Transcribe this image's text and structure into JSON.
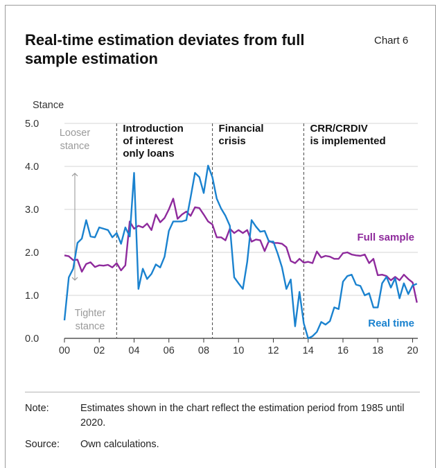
{
  "header": {
    "title": "Real-time estimation deviates from full sample estimation",
    "chart_number": "Chart 6"
  },
  "chart_data": {
    "type": "line",
    "ylabel": "Stance",
    "ylim": [
      0,
      5
    ],
    "xlim": [
      2000,
      2020.3
    ],
    "y_ticks": [
      "0.0",
      "1.0",
      "2.0",
      "3.0",
      "4.0",
      "5.0"
    ],
    "x_ticks": [
      "00",
      "02",
      "04",
      "06",
      "08",
      "10",
      "12",
      "14",
      "16",
      "18",
      "20"
    ],
    "grid": "horizontal",
    "annotations": {
      "looser": [
        "Looser",
        "stance"
      ],
      "tighter": [
        "Tighter",
        "stance"
      ],
      "events": [
        {
          "x": 2003.0,
          "lines": [
            "Introduction",
            "of interest",
            "only loans"
          ]
        },
        {
          "x": 2008.5,
          "lines": [
            "Financial",
            "crisis"
          ]
        },
        {
          "x": 2013.75,
          "lines": [
            "CRR/CRDIV",
            "is implemented"
          ]
        }
      ]
    },
    "colors": {
      "full_sample": "#8e2a9c",
      "real_time": "#1a82cf",
      "grid": "#d6d6d6",
      "event_line": "#555555",
      "annotation_grey": "#9a9a9a"
    },
    "series": [
      {
        "name": "Full sample",
        "x": [
          2000.0,
          2000.25,
          2000.5,
          2000.75,
          2001.0,
          2001.25,
          2001.5,
          2001.75,
          2002.0,
          2002.25,
          2002.5,
          2002.75,
          2003.0,
          2003.25,
          2003.5,
          2003.75,
          2004.0,
          2004.25,
          2004.5,
          2004.75,
          2005.0,
          2005.25,
          2005.5,
          2005.75,
          2006.0,
          2006.25,
          2006.5,
          2006.75,
          2007.0,
          2007.25,
          2007.5,
          2007.75,
          2008.0,
          2008.25,
          2008.5,
          2008.75,
          2009.0,
          2009.25,
          2009.5,
          2009.75,
          2010.0,
          2010.25,
          2010.5,
          2010.75,
          2011.0,
          2011.25,
          2011.5,
          2011.75,
          2012.0,
          2012.25,
          2012.5,
          2012.75,
          2013.0,
          2013.25,
          2013.5,
          2013.75,
          2014.0,
          2014.25,
          2014.5,
          2014.75,
          2015.0,
          2015.25,
          2015.5,
          2015.75,
          2016.0,
          2016.25,
          2016.5,
          2016.75,
          2017.0,
          2017.25,
          2017.5,
          2017.75,
          2018.0,
          2018.25,
          2018.5,
          2018.75,
          2019.0,
          2019.25,
          2019.5,
          2019.75,
          2020.0,
          2020.25
        ],
        "values": [
          1.93,
          1.91,
          1.82,
          1.83,
          1.55,
          1.73,
          1.77,
          1.66,
          1.7,
          1.69,
          1.71,
          1.65,
          1.75,
          1.58,
          1.7,
          2.72,
          2.55,
          2.62,
          2.58,
          2.67,
          2.52,
          2.88,
          2.7,
          2.8,
          3.0,
          3.25,
          2.78,
          2.88,
          2.95,
          2.85,
          3.05,
          3.03,
          2.88,
          2.72,
          2.65,
          2.35,
          2.35,
          2.28,
          2.55,
          2.45,
          2.52,
          2.45,
          2.52,
          2.25,
          2.3,
          2.28,
          2.03,
          2.27,
          2.22,
          2.22,
          2.2,
          2.12,
          1.8,
          1.75,
          1.85,
          1.76,
          1.78,
          1.75,
          2.02,
          1.88,
          1.92,
          1.9,
          1.85,
          1.85,
          1.98,
          2.0,
          1.95,
          1.93,
          1.92,
          1.95,
          1.75,
          1.85,
          1.47,
          1.48,
          1.45,
          1.35,
          1.43,
          1.35,
          1.48,
          1.38,
          1.3,
          0.83
        ]
      },
      {
        "name": "Real time",
        "x": [
          2000.0,
          2000.25,
          2000.5,
          2000.75,
          2001.0,
          2001.25,
          2001.5,
          2001.75,
          2002.0,
          2002.25,
          2002.5,
          2002.75,
          2003.0,
          2003.25,
          2003.5,
          2003.75,
          2004.0,
          2004.25,
          2004.5,
          2004.75,
          2005.0,
          2005.25,
          2005.5,
          2005.75,
          2006.0,
          2006.25,
          2006.5,
          2006.75,
          2007.0,
          2007.25,
          2007.5,
          2007.75,
          2008.0,
          2008.25,
          2008.5,
          2008.75,
          2009.0,
          2009.25,
          2009.5,
          2009.75,
          2010.0,
          2010.25,
          2010.5,
          2010.75,
          2011.0,
          2011.25,
          2011.5,
          2011.75,
          2012.0,
          2012.25,
          2012.5,
          2012.75,
          2013.0,
          2013.25,
          2013.5,
          2013.75,
          2014.0,
          2014.25,
          2014.5,
          2014.75,
          2015.0,
          2015.25,
          2015.5,
          2015.75,
          2016.0,
          2016.25,
          2016.5,
          2016.75,
          2017.0,
          2017.25,
          2017.5,
          2017.75,
          2018.0,
          2018.25,
          2018.5,
          2018.75,
          2019.0,
          2019.25,
          2019.5,
          2019.75,
          2020.0,
          2020.25
        ],
        "values": [
          0.42,
          1.42,
          1.62,
          2.22,
          2.32,
          2.75,
          2.37,
          2.35,
          2.58,
          2.55,
          2.52,
          2.35,
          2.45,
          2.2,
          2.58,
          2.37,
          3.85,
          1.15,
          1.62,
          1.38,
          1.5,
          1.72,
          1.65,
          1.9,
          2.5,
          2.72,
          2.72,
          2.72,
          2.75,
          3.28,
          3.85,
          3.75,
          3.38,
          4.02,
          3.75,
          3.25,
          3.02,
          2.85,
          2.62,
          1.42,
          1.28,
          1.15,
          1.78,
          2.75,
          2.6,
          2.48,
          2.5,
          2.25,
          2.25,
          1.97,
          1.65,
          1.15,
          1.37,
          0.28,
          1.08,
          0.35,
          0.0,
          0.05,
          0.15,
          0.38,
          0.32,
          0.4,
          0.72,
          0.68,
          1.32,
          1.45,
          1.48,
          1.25,
          1.22,
          1.0,
          1.05,
          0.72,
          0.72,
          1.28,
          1.43,
          1.18,
          1.4,
          0.93,
          1.28,
          1.03,
          1.23,
          1.27
        ]
      }
    ]
  },
  "footer": {
    "note_label": "Note:",
    "note_text": "Estimates shown in the chart reflect the estimation period from 1985 until 2020.",
    "source_label": "Source:",
    "source_text": "Own calculations."
  }
}
